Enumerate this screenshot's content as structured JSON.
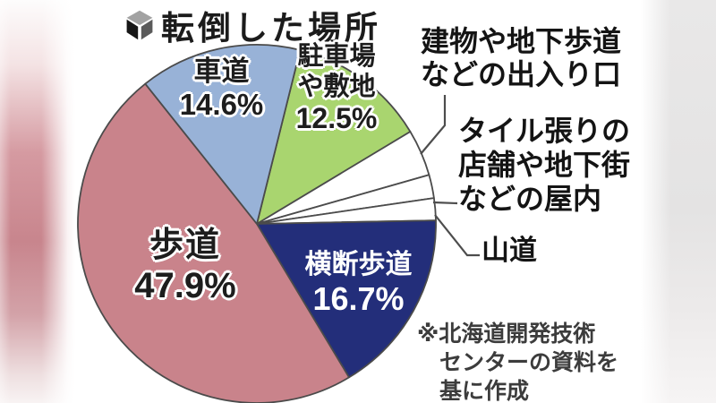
{
  "title": {
    "text": "転倒した場所"
  },
  "chart_data": {
    "type": "pie",
    "title": "転倒した場所",
    "unit": "%",
    "start_angle_deg": 14,
    "legend_position": "on-slices-and-callouts",
    "outline_color": "#4b4b4b",
    "slices": [
      {
        "id": "parking",
        "label": "駐車場や敷地",
        "display_label": "駐車場\nや敷地",
        "value": 12.5,
        "percent_label": "12.5%",
        "color": "#a9d56f",
        "value_is_estimate": false
      },
      {
        "id": "building-entrance",
        "label": "建物や地下歩道などの出入り口",
        "display_label": "建物や地下歩道\nなどの出入り口",
        "value": 4.2,
        "color": "#ffffff",
        "value_is_estimate": true
      },
      {
        "id": "tiled-indoor",
        "label": "タイル張りの店舗や地下街などの屋内",
        "display_label": "タイル張りの\n店舗や地下街\nなどの屋内",
        "value": 2.1,
        "color": "#ffffff",
        "value_is_estimate": true
      },
      {
        "id": "mountain-trail",
        "label": "山道",
        "display_label": "山道",
        "value": 2.0,
        "color": "#ffffff",
        "value_is_estimate": true
      },
      {
        "id": "crosswalk",
        "label": "横断歩道",
        "display_label": "横断歩道",
        "value": 16.7,
        "percent_label": "16.7%",
        "color": "#232e7a",
        "value_is_estimate": false
      },
      {
        "id": "sidewalk",
        "label": "歩道",
        "display_label": "歩道",
        "value": 47.9,
        "percent_label": "47.9%",
        "color": "#c9838b",
        "value_is_estimate": false
      },
      {
        "id": "roadway",
        "label": "車道",
        "display_label": "車道",
        "value": 14.6,
        "percent_label": "14.6%",
        "color": "#98b2d7",
        "value_is_estimate": false
      }
    ]
  },
  "footer": {
    "lines": [
      "※北海道開発技術",
      "センターの資料を",
      "基に作成"
    ]
  }
}
